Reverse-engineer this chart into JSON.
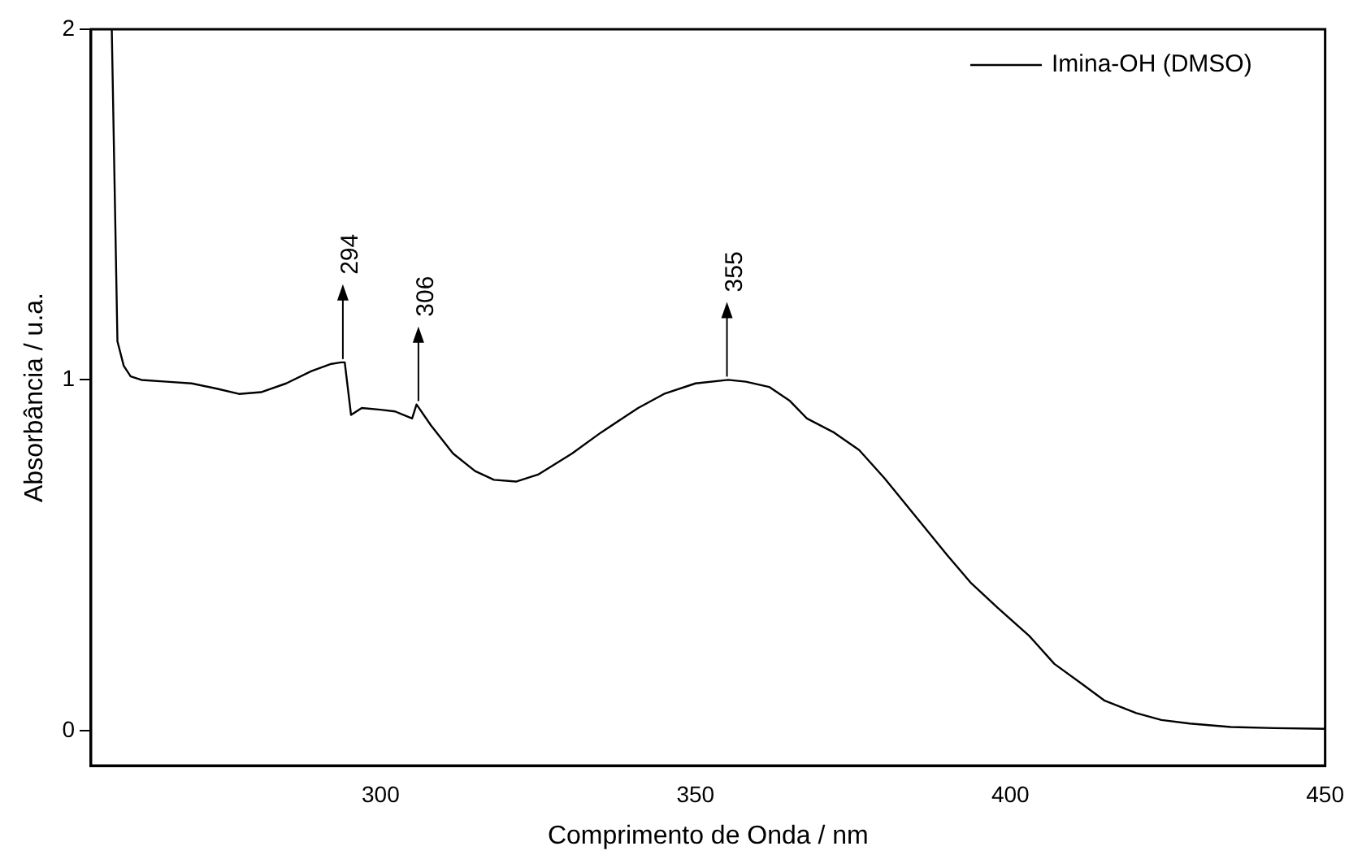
{
  "chart_data": {
    "type": "line",
    "xlabel": "Comprimento de Onda / nm",
    "ylabel": "Absorbância / u.a.",
    "x": [
      257.3,
      258.2,
      259.2,
      260.3,
      262,
      266,
      270,
      274,
      277.5,
      281,
      285,
      289,
      292,
      293.7,
      294.3,
      295.3,
      297,
      300,
      302.3,
      305,
      305.7,
      308,
      311.5,
      315,
      318,
      321.5,
      325,
      330.4,
      335,
      340.9,
      345,
      350,
      355.2,
      358,
      361.7,
      365,
      367.7,
      372,
      376,
      380,
      385,
      390,
      393.8,
      398,
      403,
      407,
      411.6,
      415,
      420,
      424,
      428.5,
      435,
      442,
      450
    ],
    "series": [
      {
        "name": "Imina-OH (DMSO)",
        "color": "#000000",
        "values": [
          2.0,
          1.11,
          1.04,
          1.01,
          1.0,
          0.995,
          0.99,
          0.975,
          0.96,
          0.965,
          0.99,
          1.025,
          1.045,
          1.05,
          1.05,
          0.9,
          0.92,
          0.915,
          0.91,
          0.89,
          0.93,
          0.87,
          0.79,
          0.74,
          0.715,
          0.71,
          0.73,
          0.79,
          0.85,
          0.92,
          0.96,
          0.99,
          1.0,
          0.995,
          0.98,
          0.94,
          0.89,
          0.85,
          0.8,
          0.72,
          0.61,
          0.5,
          0.42,
          0.35,
          0.27,
          0.19,
          0.13,
          0.085,
          0.05,
          0.03,
          0.02,
          0.01,
          0.007,
          0.005
        ]
      }
    ],
    "annotations": [
      {
        "text": "294",
        "x": 294,
        "y": 1.05
      },
      {
        "text": "306",
        "x": 306,
        "y": 0.93
      },
      {
        "text": "355",
        "x": 355,
        "y": 1.0
      }
    ],
    "xlim": [
      254,
      450
    ],
    "xticks": [
      300,
      350,
      400,
      450
    ],
    "ylim": [
      -0.1,
      2
    ],
    "yticks": [
      0,
      1,
      2
    ],
    "grid": false,
    "legend": "top right",
    "marker": "none",
    "line_style": "solid"
  }
}
